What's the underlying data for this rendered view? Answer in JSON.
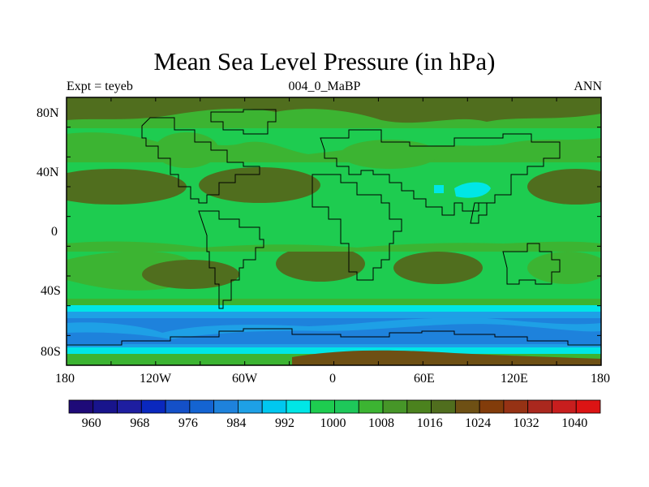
{
  "title": "Mean Sea Level Pressure (in hPa)",
  "left_label": "Expt = teyeb",
  "center_label": "004_0_MaBP",
  "right_label": "ANN",
  "map": {
    "lon_range": [
      -180,
      180
    ],
    "lat_range": [
      -90,
      90
    ],
    "lon_ticks": [
      "180",
      "120W",
      "60W",
      "0",
      "60E",
      "120E",
      "180"
    ],
    "lat_ticks": [
      "80N",
      "40N",
      "0",
      "40S",
      "80S"
    ]
  },
  "colorbar": {
    "labels": [
      "960",
      "968",
      "976",
      "984",
      "992",
      "1000",
      "1008",
      "1016",
      "1024",
      "1032",
      "1040"
    ],
    "colors": [
      "#1e0a78",
      "#18148c",
      "#1e1ea0",
      "#0a28be",
      "#1450c8",
      "#1464d2",
      "#1e82dc",
      "#1ea0e6",
      "#00c8f0",
      "#00e6e6",
      "#1ecc50",
      "#1ec85a",
      "#3cb432",
      "#469628",
      "#4b821e",
      "#506e1e",
      "#6e5014",
      "#823c0a",
      "#963214",
      "#aa281e",
      "#c81e1e",
      "#dc1414"
    ]
  },
  "colors": {
    "high": "#506e1e",
    "mid_high": "#3cb432",
    "normal": "#1ecc50",
    "cyan": "#00e6e6",
    "light_blue": "#1ea0e6",
    "blue": "#1e82dc",
    "antarctic": "#6e5014"
  }
}
